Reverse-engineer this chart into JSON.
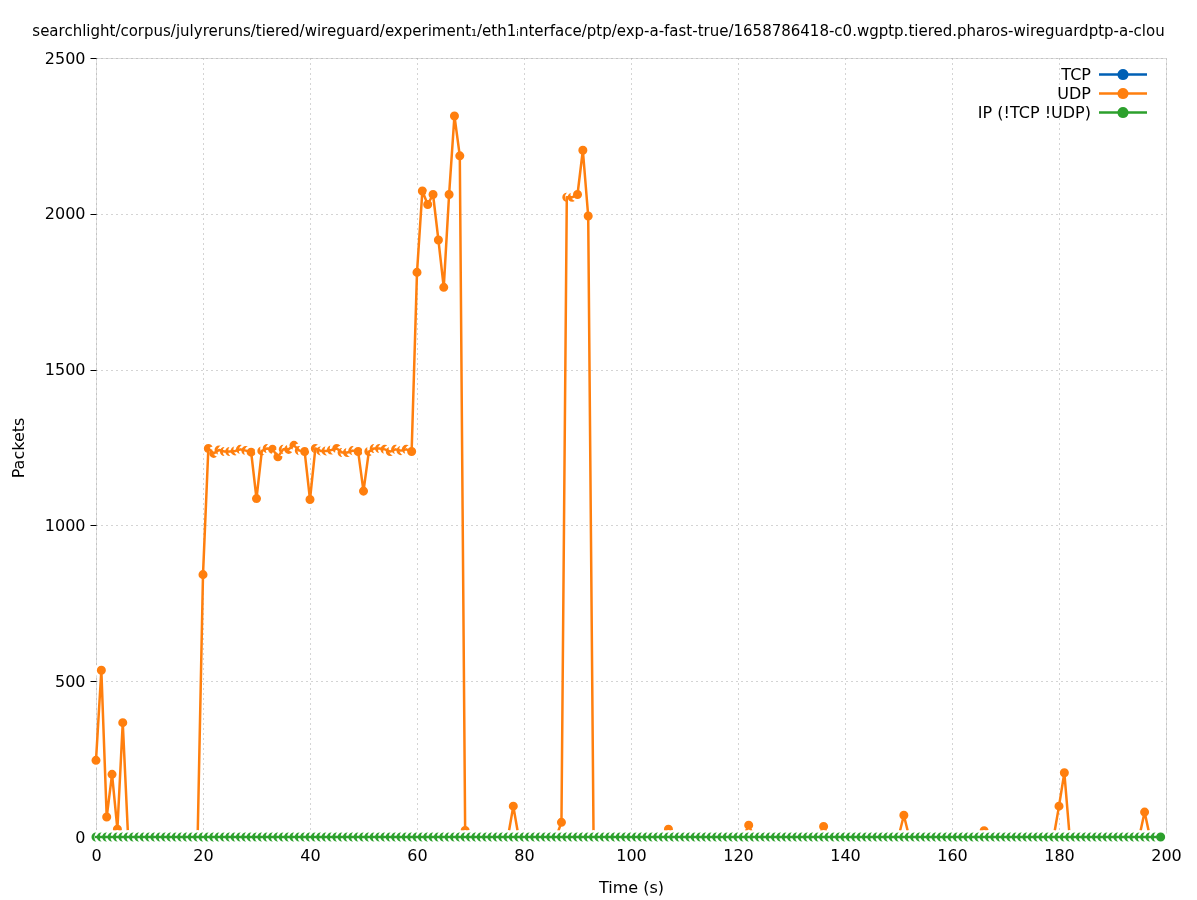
{
  "chart_data": {
    "type": "line",
    "title": "searchlight/corpus/julyreruns/tiered/wireguard/experiment₁/eth1ᵢnterface/ptp/exp-a-fast-true/1658786418-c0.wgptp.tiered.pharos-wireguardptp-a-clou",
    "xlabel": "Time (s)",
    "ylabel": "Packets",
    "xlim": [
      0,
      200
    ],
    "xticks": [
      0,
      20,
      40,
      60,
      80,
      100,
      120,
      140,
      160,
      180,
      200
    ],
    "ylim": [
      0,
      2500
    ],
    "yticks": [
      0,
      500,
      1000,
      1500,
      2000,
      2500
    ],
    "grid": true,
    "legend": "top right",
    "marker": "circle",
    "line_style": "solid",
    "series": [
      {
        "name": "TCP",
        "color": "#0060b5"
      },
      {
        "name": "UDP",
        "color": "#ff7f0e",
        "x": [
          0,
          1,
          2,
          3,
          4,
          5,
          6,
          7,
          19,
          20,
          21,
          22,
          23,
          24,
          25,
          26,
          27,
          28,
          29,
          30,
          31,
          32,
          33,
          34,
          35,
          36,
          37,
          38,
          39,
          40,
          41,
          42,
          43,
          44,
          45,
          46,
          47,
          48,
          49,
          50,
          51,
          52,
          53,
          54,
          55,
          56,
          57,
          58,
          59,
          60,
          61,
          62,
          63,
          64,
          65,
          66,
          67,
          68,
          69,
          70,
          71,
          77,
          78,
          79,
          80,
          86,
          87,
          88,
          89,
          90,
          91,
          92,
          93,
          94,
          106,
          107,
          108,
          109,
          121,
          122,
          123,
          124,
          135,
          136,
          137,
          138,
          150,
          151,
          152,
          153,
          165,
          166,
          167,
          168,
          179,
          180,
          181,
          182,
          183,
          195,
          196,
          197
        ],
        "values": [
          246,
          535,
          64,
          201,
          25,
          367,
          0,
          null,
          0,
          842,
          1247,
          1231,
          1242,
          1237,
          1237,
          1239,
          1244,
          1240,
          1235,
          1086,
          1239,
          1247,
          1244,
          1220,
          1244,
          1244,
          1257,
          1240,
          1237,
          1083,
          1247,
          1239,
          1239,
          1242,
          1247,
          1234,
          1234,
          1240,
          1237,
          1110,
          1237,
          1247,
          1247,
          1244,
          1237,
          1244,
          1240,
          1244,
          1237,
          1812,
          2073,
          2030,
          2062,
          1916,
          1764,
          2062,
          2314,
          2186,
          21,
          0,
          null,
          0,
          99,
          0,
          null,
          0,
          47,
          2053,
          2053,
          2062,
          2204,
          1993,
          0,
          null,
          0,
          25,
          0,
          null,
          0,
          38,
          0,
          null,
          0,
          34,
          0,
          null,
          0,
          70,
          0,
          null,
          0,
          20,
          0,
          null,
          0,
          99,
          206,
          0,
          null,
          0,
          80,
          0
        ]
      },
      {
        "name": "IP (!TCP !UDP)",
        "color": "#2ca02c",
        "x": [
          0,
          1,
          2,
          3,
          4,
          5,
          6,
          7,
          8,
          9,
          10,
          11,
          12,
          13,
          14,
          15,
          16,
          17,
          18,
          19,
          20,
          21,
          22,
          23,
          24,
          25,
          26,
          27,
          28,
          29,
          30,
          31,
          32,
          33,
          34,
          35,
          36,
          37,
          38,
          39,
          40,
          41,
          42,
          43,
          44,
          45,
          46,
          47,
          48,
          49,
          50,
          51,
          52,
          53,
          54,
          55,
          56,
          57,
          58,
          59,
          60,
          61,
          62,
          63,
          64,
          65,
          66,
          67,
          68,
          69,
          70,
          71,
          72,
          73,
          74,
          75,
          76,
          77,
          78,
          79,
          80,
          81,
          82,
          83,
          84,
          85,
          86,
          87,
          88,
          89,
          90,
          91,
          92,
          93,
          94,
          95,
          96,
          97,
          98,
          99,
          100,
          101,
          102,
          103,
          104,
          105,
          106,
          107,
          108,
          109,
          110,
          111,
          112,
          113,
          114,
          115,
          116,
          117,
          118,
          119,
          120,
          121,
          122,
          123,
          124,
          125,
          126,
          127,
          128,
          129,
          130,
          131,
          132,
          133,
          134,
          135,
          136,
          137,
          138,
          139,
          140,
          141,
          142,
          143,
          144,
          145,
          146,
          147,
          148,
          149,
          150,
          151,
          152,
          153,
          154,
          155,
          156,
          157,
          158,
          159,
          160,
          161,
          162,
          163,
          164,
          165,
          166,
          167,
          168,
          169,
          170,
          171,
          172,
          173,
          174,
          175,
          176,
          177,
          178,
          179,
          180,
          181,
          182,
          183,
          184,
          185,
          186,
          187,
          188,
          189,
          190,
          191,
          192,
          193,
          194,
          195,
          196,
          197,
          198,
          199
        ],
        "values": [
          0,
          0,
          0,
          0,
          0,
          0,
          0,
          0,
          0,
          0,
          0,
          0,
          0,
          0,
          0,
          0,
          0,
          0,
          0,
          0,
          0,
          0,
          0,
          0,
          0,
          0,
          0,
          0,
          0,
          0,
          0,
          0,
          0,
          0,
          0,
          0,
          0,
          0,
          0,
          0,
          0,
          0,
          0,
          0,
          0,
          0,
          0,
          0,
          0,
          0,
          0,
          0,
          0,
          0,
          0,
          0,
          0,
          0,
          0,
          0,
          0,
          0,
          0,
          0,
          0,
          0,
          0,
          0,
          0,
          0,
          0,
          0,
          0,
          0,
          0,
          0,
          0,
          0,
          0,
          0,
          0,
          0,
          0,
          0,
          0,
          0,
          0,
          0,
          0,
          0,
          0,
          0,
          0,
          0,
          0,
          0,
          0,
          0,
          0,
          0,
          0,
          0,
          0,
          0,
          0,
          0,
          0,
          0,
          0,
          0,
          0,
          0,
          0,
          0,
          0,
          0,
          0,
          0,
          0,
          0,
          0,
          0,
          0,
          0,
          0,
          0,
          0,
          0,
          0,
          0,
          0,
          0,
          0,
          0,
          0,
          0,
          0,
          0,
          0,
          0,
          0,
          0,
          0,
          0,
          0,
          0,
          0,
          0,
          0,
          0,
          0,
          0,
          0,
          0,
          0,
          0,
          0,
          0,
          0,
          0,
          0,
          0,
          0,
          0,
          0,
          0,
          0,
          0,
          0,
          0,
          0,
          0,
          0,
          0,
          0,
          0,
          0,
          0,
          0,
          0,
          0,
          0,
          0,
          0,
          0,
          0,
          0,
          0,
          0,
          0,
          0,
          0,
          0,
          0,
          0,
          0,
          0,
          0,
          0,
          0
        ]
      }
    ]
  }
}
